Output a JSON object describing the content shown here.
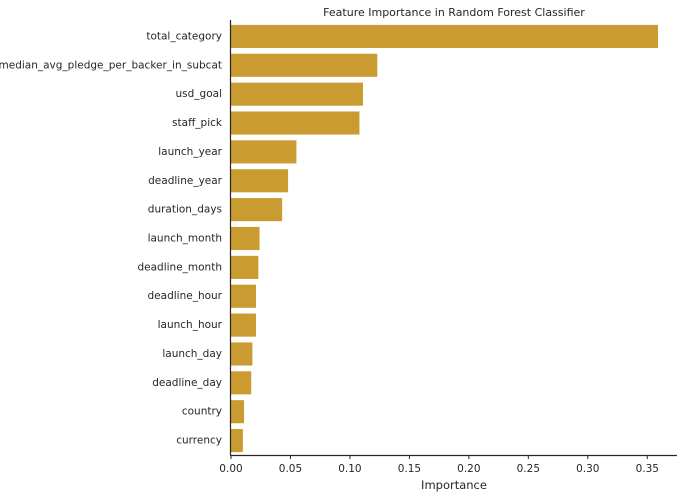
{
  "chart_data": {
    "type": "bar",
    "orientation": "horizontal",
    "title": "Feature Importance in Random Forest Classifier",
    "xlabel": "Importance",
    "ylabel": "",
    "xlim": [
      0,
      0.375
    ],
    "xticks": [
      0.0,
      0.05,
      0.1,
      0.15,
      0.2,
      0.25,
      0.3,
      0.35
    ],
    "xtick_labels": [
      "0.00",
      "0.05",
      "0.10",
      "0.15",
      "0.20",
      "0.25",
      "0.30",
      "0.35"
    ],
    "grid": false,
    "bar_color": "#c99b30",
    "categories": [
      "total_category",
      "median_avg_pledge_per_backer_in_subcat",
      "usd_goal",
      "staff_pick",
      "launch_year",
      "deadline_year",
      "duration_days",
      "launch_month",
      "deadline_month",
      "deadline_hour",
      "launch_hour",
      "launch_day",
      "deadline_day",
      "country",
      "currency"
    ],
    "values": [
      0.359,
      0.123,
      0.111,
      0.108,
      0.055,
      0.048,
      0.043,
      0.024,
      0.023,
      0.021,
      0.021,
      0.018,
      0.017,
      0.011,
      0.01
    ]
  }
}
